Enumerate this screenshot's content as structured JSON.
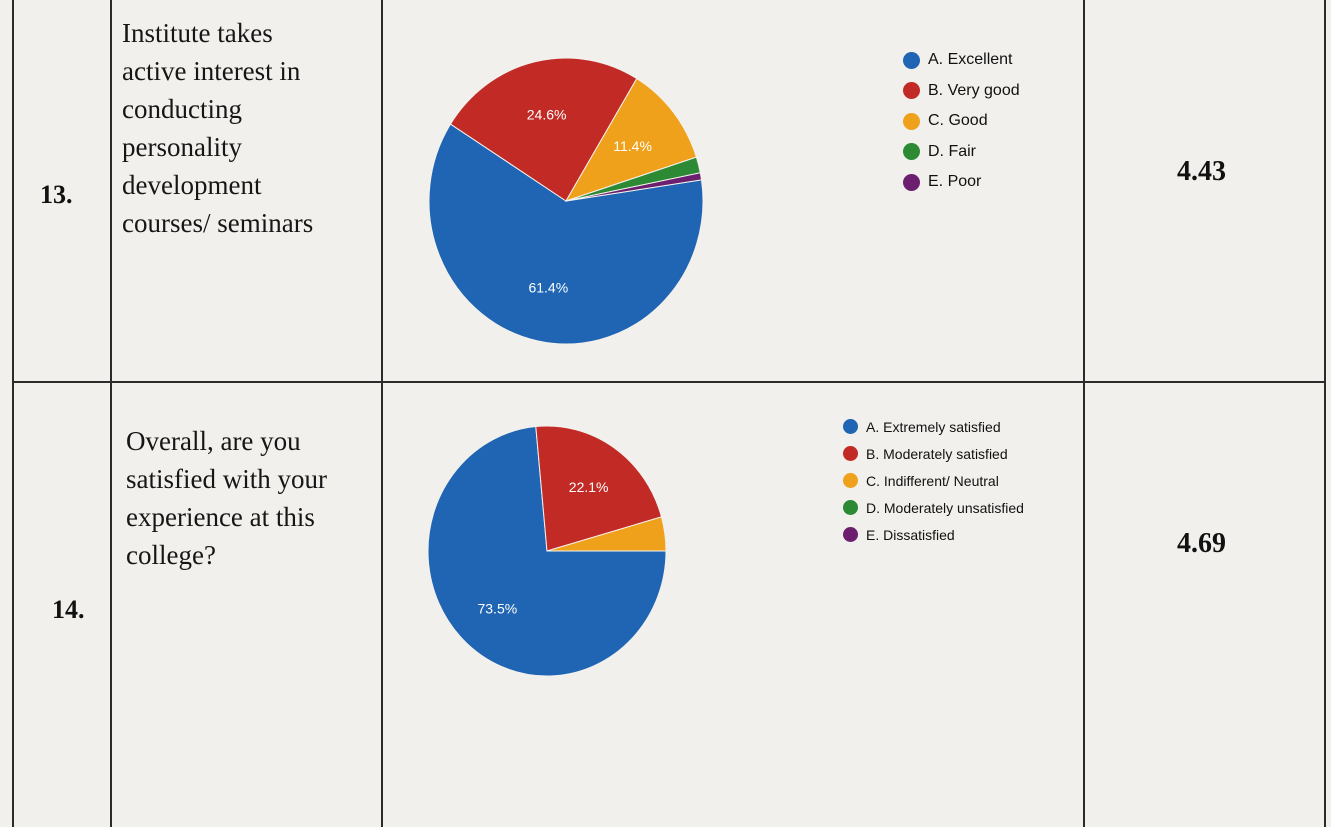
{
  "rows": [
    {
      "number": "13.",
      "question_lines": [
        "Institute takes",
        "active interest in",
        "conducting",
        "personality",
        "development",
        "courses/ seminars"
      ],
      "score": "4.43",
      "legend": [
        {
          "label": "A. Excellent",
          "color": "#1f65b3"
        },
        {
          "label": "B. Very good",
          "color": "#c22a25"
        },
        {
          "label": "C. Good",
          "color": "#efa11b"
        },
        {
          "label": "D. Fair",
          "color": "#2c8a35"
        },
        {
          "label": "E. Poor",
          "color": "#6b1f6e"
        }
      ]
    },
    {
      "number": "14.",
      "question_lines": [
        "Overall, are you",
        "satisfied with your",
        "experience at this",
        "college?"
      ],
      "score": "4.69",
      "legend": [
        {
          "label": "A. Extremely satisfied",
          "color": "#1f65b3"
        },
        {
          "label": "B. Moderately satisfied",
          "color": "#c22a25"
        },
        {
          "label": "C. Indifferent/ Neutral",
          "color": "#efa11b"
        },
        {
          "label": "D. Moderately unsatisfied",
          "color": "#2c8a35"
        },
        {
          "label": "E. Dissatisfied",
          "color": "#6b1f6e"
        }
      ]
    }
  ],
  "chart_data": [
    {
      "type": "pie",
      "series": [
        {
          "name": "A. Excellent",
          "value": 61.4,
          "label": "61.4%",
          "color": "#1f65b3"
        },
        {
          "name": "B. Very good",
          "value": 24.6,
          "label": "24.6%",
          "color": "#c22a25"
        },
        {
          "name": "C. Good",
          "value": 11.4,
          "label": "11.4%",
          "color": "#efa11b"
        },
        {
          "name": "D. Fair",
          "value": 1.8,
          "label": "",
          "color": "#2c8a35"
        },
        {
          "name": "E. Poor",
          "value": 0.8,
          "label": "",
          "color": "#6b1f6e"
        }
      ],
      "legend_position": "right"
    },
    {
      "type": "pie",
      "series": [
        {
          "name": "A. Extremely satisfied",
          "value": 73.5,
          "label": "73.5%",
          "color": "#1f65b3"
        },
        {
          "name": "B. Moderately satisfied",
          "value": 22.1,
          "label": "22.1%",
          "color": "#c22a25"
        },
        {
          "name": "C. Indifferent/ Neutral",
          "value": 4.4,
          "label": "",
          "color": "#efa11b"
        },
        {
          "name": "D. Moderately unsatisfied",
          "value": 0,
          "label": "",
          "color": "#2c8a35"
        },
        {
          "name": "E. Dissatisfied",
          "value": 0,
          "label": "",
          "color": "#6b1f6e"
        }
      ],
      "legend_position": "right"
    }
  ]
}
